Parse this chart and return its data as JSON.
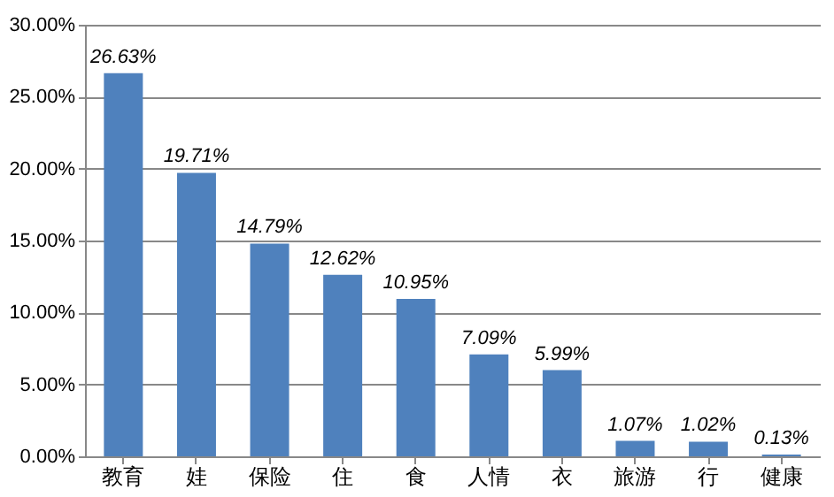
{
  "chart_data": {
    "type": "bar",
    "categories": [
      "教育",
      "娃",
      "保险",
      "住",
      "食",
      "人情",
      "衣",
      "旅游",
      "行",
      "健康"
    ],
    "values": [
      26.63,
      19.71,
      14.79,
      12.62,
      10.95,
      7.09,
      5.99,
      1.07,
      1.02,
      0.13
    ],
    "value_labels": [
      "26.63%",
      "19.71%",
      "14.79%",
      "12.62%",
      "10.95%",
      "7.09%",
      "5.99%",
      "1.07%",
      "1.02%",
      "0.13%"
    ],
    "color": "#4f81bd",
    "ylim": [
      0,
      30
    ],
    "yticks": [
      {
        "value": 0,
        "label": "0.00%"
      },
      {
        "value": 5,
        "label": "5.00%"
      },
      {
        "value": 10,
        "label": "10.00%"
      },
      {
        "value": 15,
        "label": "15.00%"
      },
      {
        "value": 20,
        "label": "20.00%"
      },
      {
        "value": 25,
        "label": "25.00%"
      },
      {
        "value": 30,
        "label": "30.00%"
      }
    ],
    "grid": "y"
  }
}
